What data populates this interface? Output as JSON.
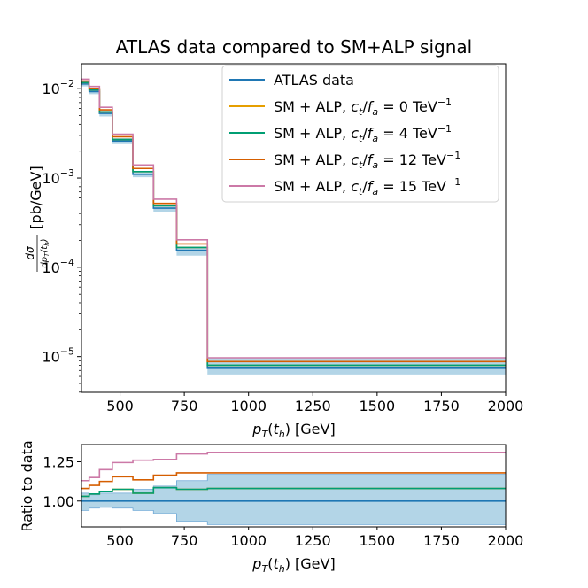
{
  "chart_data": [
    {
      "type": "line",
      "panel": "main",
      "title": "ATLAS data compared to SM+ALP signal",
      "xlabel": "p_T(t_h) [GeV]",
      "ylabel": "dσ/dp_T(t_h) [pb/GeV]",
      "yscale": "log",
      "xlim": [
        350,
        2000
      ],
      "ylim_log10": [
        -5.4,
        -1.72
      ],
      "bin_edges": [
        350,
        380,
        420,
        470,
        550,
        630,
        720,
        840,
        2000
      ],
      "xticks": [
        "500",
        "750",
        "1000",
        "1250",
        "1500",
        "1750",
        "2000"
      ],
      "xtick_values": [
        500,
        750,
        1000,
        1250,
        1500,
        1750,
        2000
      ],
      "yticks": [
        {
          "base": "10",
          "exp": "−2",
          "value": 0.01
        },
        {
          "base": "10",
          "exp": "−3",
          "value": 0.001
        },
        {
          "base": "10",
          "exp": "−4",
          "value": 0.0001
        },
        {
          "base": "10",
          "exp": "−5",
          "value": 1e-05
        }
      ],
      "uncertainty_band": {
        "label": "ATLAS data uncertainty",
        "lower": [
          0.0106,
          0.0087,
          0.0049,
          0.0024,
          0.00102,
          0.00042,
          0.000135,
          6.3e-06
        ],
        "upper": [
          0.0122,
          0.01,
          0.0057,
          0.0028,
          0.0012,
          0.0005,
          0.00017,
          9.6e-06
        ]
      },
      "series": [
        {
          "name": "ATLAS data",
          "color": "#1f77b4",
          "values": [
            0.0113,
            0.0093,
            0.0053,
            0.0026,
            0.0011,
            0.00046,
            0.000155,
            7.4e-06
          ]
        },
        {
          "name": "SM + ALP, c_t/f_a = 0 TeV⁻¹",
          "color": "#e69f00",
          "values": [
            0.0117,
            0.0097,
            0.0055,
            0.0027,
            0.00118,
            0.00049,
            0.000167,
            8e-06
          ]
        },
        {
          "name": "SM + ALP, c_t/f_a = 4 TeV⁻¹",
          "color": "#009e73",
          "values": [
            0.0117,
            0.0097,
            0.0055,
            0.0027,
            0.00118,
            0.00049,
            0.000167,
            8e-06
          ]
        },
        {
          "name": "SM + ALP, c_t/f_a = 12 TeV⁻¹",
          "color": "#d55e00",
          "values": [
            0.0122,
            0.0101,
            0.0058,
            0.0029,
            0.00128,
            0.00052,
            0.000183,
            8.8e-06
          ]
        },
        {
          "name": "SM + ALP, c_t/f_a = 15 TeV⁻¹",
          "color": "#cc79a7",
          "values": [
            0.0128,
            0.0106,
            0.0062,
            0.0031,
            0.0014,
            0.00058,
            0.000203,
            9.7e-06
          ]
        }
      ],
      "legend_location": "top-right"
    },
    {
      "type": "line",
      "panel": "ratio",
      "xlabel": "p_T(t_h) [GeV]",
      "ylabel": "Ratio to data",
      "xlim": [
        350,
        2000
      ],
      "ylim": [
        0.835,
        1.36
      ],
      "bin_edges": [
        350,
        380,
        420,
        470,
        550,
        630,
        720,
        840,
        2000
      ],
      "xticks": [
        "500",
        "750",
        "1000",
        "1250",
        "1500",
        "1750",
        "2000"
      ],
      "xtick_values": [
        500,
        750,
        1000,
        1250,
        1500,
        1750,
        2000
      ],
      "yticks": [
        "1.00",
        "1.25"
      ],
      "ytick_values": [
        1.0,
        1.25
      ],
      "uncertainty_band": {
        "lower": [
          0.94,
          0.955,
          0.96,
          0.955,
          0.94,
          0.92,
          0.87,
          0.85
        ],
        "upper": [
          1.05,
          1.04,
          1.05,
          1.05,
          1.075,
          1.095,
          1.13,
          1.17
        ]
      },
      "series": [
        {
          "name": "ATLAS data",
          "color": "#1f77b4",
          "values": [
            1.0,
            1.0,
            1.0,
            1.0,
            1.0,
            1.0,
            1.0,
            1.0
          ]
        },
        {
          "name": "SM + ALP, c_t/f_a = 0 TeV⁻¹",
          "color": "#e69f00",
          "values": [
            1.03,
            1.045,
            1.06,
            1.075,
            1.05,
            1.085,
            1.075,
            1.08
          ]
        },
        {
          "name": "SM + ALP, c_t/f_a = 4 TeV⁻¹",
          "color": "#009e73",
          "values": [
            1.03,
            1.045,
            1.06,
            1.075,
            1.05,
            1.085,
            1.075,
            1.08
          ]
        },
        {
          "name": "SM + ALP, c_t/f_a = 12 TeV⁻¹",
          "color": "#d55e00",
          "values": [
            1.08,
            1.1,
            1.125,
            1.155,
            1.135,
            1.165,
            1.18,
            1.18
          ]
        },
        {
          "name": "SM + ALP, c_t/f_a = 15 TeV⁻¹",
          "color": "#cc79a7",
          "values": [
            1.13,
            1.15,
            1.2,
            1.245,
            1.26,
            1.265,
            1.3,
            1.31
          ]
        }
      ]
    }
  ],
  "legend": [
    {
      "pre": "SM + ALP, ",
      "math": "c",
      "sub": "t",
      "mid": "/",
      "math2": "f",
      "sub2": "a",
      "eq": " = ",
      "num": "0",
      "unit": " TeV",
      "sup": "−1"
    }
  ],
  "legend_entries": [
    "ATLAS data",
    "SM + ALP, c_t/f_a = 0 TeV⁻¹",
    "SM + ALP, c_t/f_a = 4 TeV⁻¹",
    "SM + ALP, c_t/f_a = 12 TeV⁻¹",
    "SM + ALP, c_t/f_a = 15 TeV⁻¹"
  ],
  "labels": {
    "ylabel_unit": "[pb/GeV]",
    "ratio_ylabel": "Ratio to data",
    "xlabel_unit": "[GeV]"
  }
}
